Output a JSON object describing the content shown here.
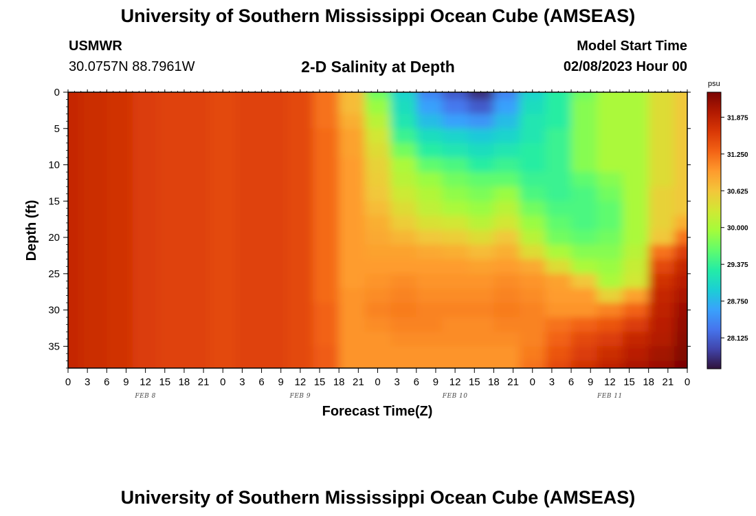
{
  "header": {
    "title": "University of Southern Mississippi Ocean Cube (AMSEAS)",
    "station": "USMWR",
    "coords": "30.0757N  88.7961W",
    "subtitle": "2-D Salinity at Depth",
    "model_start_label": "Model Start Time",
    "model_start_value": "02/08/2023 Hour 00"
  },
  "footer": {
    "title": "University of Southern Mississippi Ocean Cube (AMSEAS)"
  },
  "chart_data": {
    "type": "heatmap",
    "xlabel": "Forecast Time(Z)",
    "ylabel": "Depth (ft)",
    "x_unit": "forecast hour from model start",
    "xlim": [
      0,
      96
    ],
    "ylim": [
      0,
      38
    ],
    "y_inverted": true,
    "x_tick_labels": [
      "0",
      "3",
      "6",
      "9",
      "12",
      "15",
      "18",
      "21",
      "0",
      "3",
      "6",
      "9",
      "12",
      "15",
      "18",
      "21",
      "0",
      "3",
      "6",
      "9",
      "12",
      "15",
      "18",
      "21",
      "0",
      "3",
      "6",
      "9",
      "12",
      "15",
      "18",
      "21",
      "0"
    ],
    "y_ticks": [
      0,
      5,
      10,
      15,
      20,
      25,
      30,
      35
    ],
    "day_labels": [
      {
        "label": "FEB 8",
        "hour": 12
      },
      {
        "label": "FEB 9",
        "hour": 36
      },
      {
        "label": "FEB 10",
        "hour": 60
      },
      {
        "label": "FEB 11",
        "hour": 84
      }
    ],
    "colorbar": {
      "unit": "psu",
      "min": 27.6,
      "max": 32.3,
      "tick_labels": [
        "31.875",
        "31.250",
        "30.625",
        "30.000",
        "29.375",
        "28.750",
        "28.125"
      ],
      "tick_values": [
        31.875,
        31.25,
        30.625,
        30.0,
        29.375,
        28.75,
        28.125
      ],
      "colormap": [
        "#30123b",
        "#4145ab",
        "#4675ed",
        "#39a2fc",
        "#1bcfd4",
        "#24eca6",
        "#61fc6c",
        "#a4fc3b",
        "#d1e834",
        "#f3c63a",
        "#fe9b2d",
        "#f36315",
        "#d93806",
        "#b11901",
        "#7a0402"
      ]
    },
    "grid_depths": [
      0,
      2,
      4,
      6,
      8,
      10,
      12,
      14,
      16,
      18,
      20,
      22,
      24,
      26,
      28,
      30,
      32,
      34,
      36,
      38
    ],
    "grid_hours": [
      0,
      4,
      8,
      12,
      16,
      20,
      24,
      28,
      32,
      36,
      40,
      44,
      48,
      52,
      56,
      60,
      64,
      68,
      72,
      76,
      80,
      84,
      88,
      92,
      96
    ],
    "salinity_psu": [
      [
        31.8,
        31.75,
        31.7,
        31.6,
        31.55,
        31.55,
        31.5,
        31.55,
        31.55,
        31.5,
        31.2,
        30.7,
        29.7,
        29.0,
        28.4,
        28.1,
        27.8,
        28.4,
        29.0,
        29.3,
        29.7,
        30.0,
        30.0,
        30.4,
        30.6
      ],
      [
        31.8,
        31.75,
        31.7,
        31.6,
        31.55,
        31.55,
        31.5,
        31.55,
        31.55,
        31.5,
        31.2,
        30.7,
        29.9,
        29.1,
        28.6,
        28.3,
        28.1,
        28.6,
        29.1,
        29.3,
        29.8,
        30.0,
        30.0,
        30.4,
        30.6
      ],
      [
        31.8,
        31.75,
        31.7,
        31.6,
        31.55,
        31.55,
        31.5,
        31.55,
        31.55,
        31.5,
        31.2,
        30.8,
        30.1,
        29.2,
        28.8,
        28.6,
        28.5,
        28.8,
        29.2,
        29.3,
        29.8,
        30.0,
        30.0,
        30.4,
        30.6
      ],
      [
        31.8,
        31.75,
        31.7,
        31.6,
        31.55,
        31.55,
        31.5,
        31.55,
        31.55,
        31.5,
        31.25,
        30.9,
        30.3,
        29.4,
        29.1,
        29.0,
        28.9,
        29.0,
        29.2,
        29.4,
        29.8,
        30.0,
        30.0,
        30.4,
        30.6
      ],
      [
        31.8,
        31.75,
        31.7,
        31.6,
        31.55,
        31.55,
        31.5,
        31.55,
        31.55,
        31.5,
        31.25,
        30.9,
        30.4,
        29.7,
        29.3,
        29.2,
        29.1,
        29.2,
        29.3,
        29.4,
        29.8,
        30.0,
        30.0,
        30.4,
        30.6
      ],
      [
        31.8,
        31.75,
        31.7,
        31.6,
        31.55,
        31.55,
        31.5,
        31.55,
        31.55,
        31.5,
        31.25,
        30.95,
        30.5,
        30.0,
        29.6,
        29.5,
        29.3,
        29.4,
        29.3,
        29.4,
        29.8,
        30.0,
        30.0,
        30.4,
        30.6
      ],
      [
        31.8,
        31.75,
        31.7,
        31.6,
        31.55,
        31.55,
        31.5,
        31.55,
        31.55,
        31.5,
        31.25,
        30.95,
        30.55,
        30.1,
        29.9,
        29.7,
        29.6,
        29.6,
        29.4,
        29.4,
        29.6,
        29.8,
        30.0,
        30.4,
        30.6
      ],
      [
        31.8,
        31.75,
        31.7,
        31.6,
        31.55,
        31.55,
        31.5,
        31.55,
        31.55,
        31.5,
        31.25,
        30.95,
        30.6,
        30.25,
        30.05,
        29.85,
        29.75,
        29.9,
        29.5,
        29.4,
        29.5,
        29.7,
        30.0,
        30.5,
        30.6
      ],
      [
        31.8,
        31.75,
        31.7,
        31.6,
        31.55,
        31.55,
        31.5,
        31.55,
        31.55,
        31.5,
        31.25,
        30.95,
        30.7,
        30.4,
        30.15,
        30.0,
        29.9,
        30.1,
        29.7,
        29.5,
        29.5,
        29.6,
        30.0,
        30.5,
        30.6
      ],
      [
        31.8,
        31.75,
        31.7,
        31.6,
        31.55,
        31.55,
        31.5,
        31.55,
        31.55,
        31.5,
        31.25,
        30.95,
        30.8,
        30.55,
        30.35,
        30.3,
        30.1,
        30.3,
        29.9,
        29.6,
        29.5,
        29.6,
        30.0,
        30.5,
        30.8
      ],
      [
        31.8,
        31.75,
        31.7,
        31.6,
        31.55,
        31.55,
        31.5,
        31.55,
        31.55,
        31.5,
        31.25,
        30.95,
        30.85,
        30.75,
        30.6,
        30.55,
        30.4,
        30.6,
        30.1,
        29.7,
        29.6,
        29.7,
        30.0,
        30.6,
        31.2
      ],
      [
        31.8,
        31.75,
        31.7,
        31.6,
        31.55,
        31.55,
        31.5,
        31.55,
        31.55,
        31.5,
        31.25,
        30.95,
        30.9,
        30.9,
        30.85,
        30.8,
        30.7,
        30.8,
        30.4,
        30.0,
        29.8,
        29.8,
        30.1,
        31.2,
        31.6
      ],
      [
        31.8,
        31.75,
        31.7,
        31.6,
        31.55,
        31.55,
        31.5,
        31.55,
        31.55,
        31.5,
        31.25,
        30.95,
        30.95,
        30.95,
        30.95,
        30.95,
        30.9,
        30.95,
        30.85,
        30.4,
        30.0,
        29.9,
        30.2,
        31.5,
        31.8
      ],
      [
        31.8,
        31.75,
        31.7,
        31.6,
        31.55,
        31.55,
        31.5,
        31.55,
        31.55,
        31.5,
        31.25,
        30.95,
        31.0,
        31.05,
        31.0,
        31.0,
        31.0,
        31.05,
        31.0,
        30.9,
        30.6,
        30.0,
        30.3,
        31.7,
        31.9
      ],
      [
        31.8,
        31.75,
        31.7,
        31.6,
        31.55,
        31.55,
        31.5,
        31.55,
        31.55,
        31.5,
        31.25,
        31.0,
        31.05,
        31.1,
        31.05,
        31.05,
        31.05,
        31.1,
        31.05,
        30.95,
        30.95,
        30.5,
        30.9,
        31.8,
        32.0
      ],
      [
        31.8,
        31.75,
        31.7,
        31.6,
        31.55,
        31.55,
        31.5,
        31.55,
        31.55,
        31.5,
        31.3,
        31.0,
        31.1,
        31.15,
        31.1,
        31.1,
        31.1,
        31.15,
        31.1,
        31.0,
        31.0,
        31.1,
        31.3,
        31.85,
        32.1
      ],
      [
        31.8,
        31.75,
        31.7,
        31.6,
        31.55,
        31.55,
        31.5,
        31.55,
        31.55,
        31.5,
        31.3,
        31.0,
        31.05,
        31.1,
        31.1,
        31.05,
        31.05,
        31.1,
        31.1,
        31.2,
        31.3,
        31.4,
        31.6,
        31.9,
        32.15
      ],
      [
        31.8,
        31.75,
        31.7,
        31.6,
        31.55,
        31.55,
        31.5,
        31.55,
        31.55,
        31.5,
        31.3,
        31.0,
        31.0,
        31.05,
        31.05,
        31.05,
        31.05,
        31.05,
        31.1,
        31.3,
        31.5,
        31.6,
        31.8,
        31.95,
        32.2
      ],
      [
        31.8,
        31.75,
        31.7,
        31.6,
        31.55,
        31.55,
        31.5,
        31.55,
        31.55,
        31.5,
        31.35,
        31.0,
        31.0,
        31.0,
        31.0,
        31.0,
        31.0,
        31.0,
        31.15,
        31.4,
        31.6,
        31.75,
        31.9,
        32.05,
        32.25
      ],
      [
        31.8,
        31.75,
        31.7,
        31.6,
        31.55,
        31.55,
        31.5,
        31.55,
        31.55,
        31.5,
        31.35,
        31.0,
        31.0,
        31.0,
        31.0,
        31.0,
        31.0,
        31.0,
        31.2,
        31.5,
        31.7,
        31.85,
        32.0,
        32.1,
        32.3
      ]
    ]
  }
}
